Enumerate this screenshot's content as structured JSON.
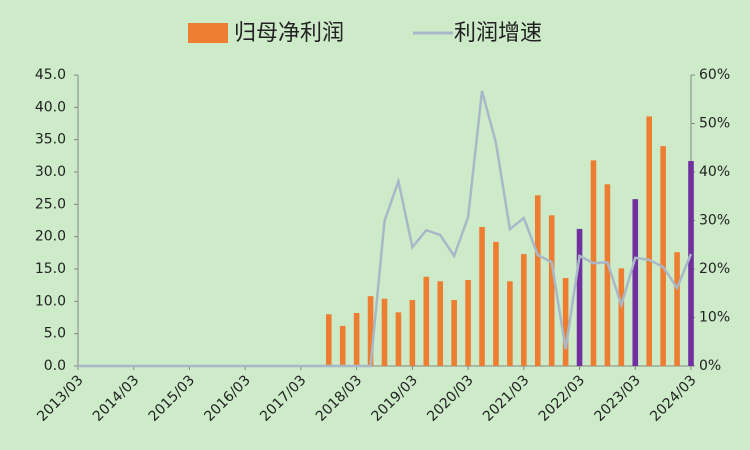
{
  "chart_data": {
    "type": "bar-line",
    "categories": [
      "2013/03",
      null,
      null,
      null,
      "2014/03",
      null,
      null,
      null,
      "2015/03",
      null,
      null,
      null,
      "2016/03",
      null,
      null,
      null,
      "2017/03",
      null,
      null,
      null,
      "2018/03",
      null,
      null,
      null,
      "2019/03",
      null,
      null,
      null,
      "2020/03",
      null,
      null,
      null,
      "2021/03",
      null,
      null,
      null,
      "2022/03",
      null,
      null,
      null,
      "2023/03",
      null,
      null,
      null,
      "2024/03"
    ],
    "series": [
      {
        "name": "归母净利润",
        "type": "bar",
        "color": "#ed7d31",
        "values": [
          null,
          null,
          null,
          null,
          null,
          null,
          null,
          null,
          null,
          null,
          null,
          null,
          null,
          null,
          null,
          null,
          null,
          null,
          8.0,
          6.2,
          8.2,
          10.8,
          10.4,
          8.3,
          10.2,
          13.8,
          13.1,
          10.2,
          13.3,
          21.5,
          19.2,
          13.1,
          17.3,
          26.4,
          23.3,
          13.6,
          21.2,
          31.8,
          28.1,
          15.1,
          25.8,
          38.6,
          34.0,
          17.6,
          31.7
        ],
        "colors": [
          null,
          null,
          null,
          null,
          null,
          null,
          null,
          null,
          null,
          null,
          null,
          null,
          null,
          null,
          null,
          null,
          null,
          null,
          "#ed7d31",
          "#ed7d31",
          "#ed7d31",
          "#ed7d31",
          "#ed7d31",
          "#ed7d31",
          "#ed7d31",
          "#ed7d31",
          "#ed7d31",
          "#ed7d31",
          "#ed7d31",
          "#ed7d31",
          "#ed7d31",
          "#ed7d31",
          "#ed7d31",
          "#ed7d31",
          "#ed7d31",
          "#ed7d31",
          "#7030a0",
          "#ed7d31",
          "#ed7d31",
          "#ed7d31",
          "#7030a0",
          "#ed7d31",
          "#ed7d31",
          "#ed7d31",
          "#7030a0"
        ]
      },
      {
        "name": "利润增速",
        "type": "line",
        "axis": "y2",
        "color": "#a9b8c8",
        "values": [
          0,
          0,
          0,
          0,
          0,
          0,
          0,
          0,
          0,
          0,
          0,
          0,
          0,
          0,
          0,
          0,
          0,
          0,
          0,
          0,
          0,
          0,
          29.9,
          38.1,
          24.5,
          28.0,
          27.0,
          22.7,
          30.7,
          56.7,
          46.0,
          28.2,
          30.5,
          22.9,
          21.4,
          3.5,
          22.7,
          21.2,
          21.4,
          12.6,
          22.3,
          21.9,
          20.4,
          16.1,
          23.1
        ]
      }
    ],
    "ylim": [
      0,
      45
    ],
    "yticks": [
      {
        "value": 0,
        "label": "0.0"
      },
      {
        "value": 5,
        "label": "5.0"
      },
      {
        "value": 10,
        "label": "10.0"
      },
      {
        "value": 15,
        "label": "15.0"
      },
      {
        "value": 20,
        "label": "20.0"
      },
      {
        "value": 25,
        "label": "25.0"
      },
      {
        "value": 30,
        "label": "30.0"
      },
      {
        "value": 35,
        "label": "35.0"
      },
      {
        "value": 40,
        "label": "40.0"
      },
      {
        "value": 45,
        "label": "45.0"
      }
    ],
    "y2lim": [
      0,
      60
    ],
    "y2ticks": [
      {
        "value": 0,
        "label": "0%"
      },
      {
        "value": 10,
        "label": "10%"
      },
      {
        "value": 20,
        "label": "20%"
      },
      {
        "value": 30,
        "label": "30%"
      },
      {
        "value": 40,
        "label": "40%"
      },
      {
        "value": 50,
        "label": "50%"
      },
      {
        "value": 60,
        "label": "60%"
      }
    ],
    "legend": "top"
  }
}
